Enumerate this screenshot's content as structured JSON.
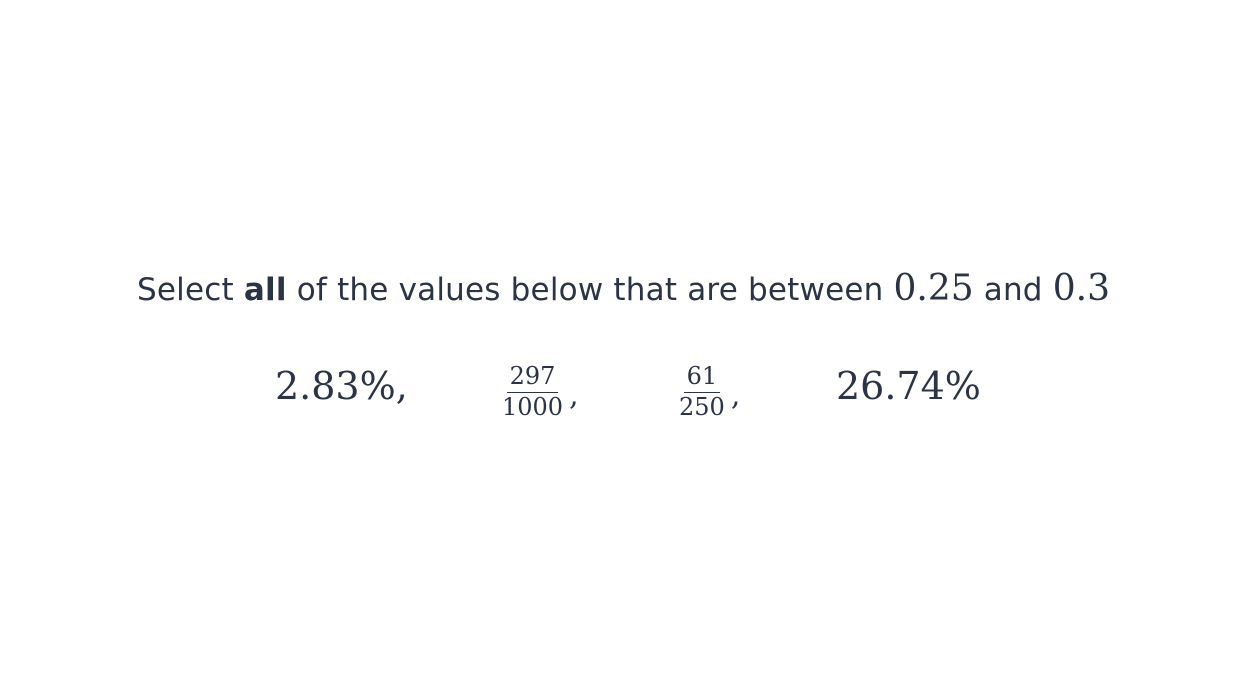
{
  "question": {
    "prefix": "Select ",
    "emphasis": "all",
    "middle": " of the values below that are between ",
    "lower_bound": "0.25",
    "connector": " and ",
    "upper_bound": "0.3"
  },
  "options": [
    {
      "kind": "percent",
      "text": "2.83%,"
    },
    {
      "kind": "fraction",
      "numerator": "297",
      "denominator": "1000",
      "separator": ","
    },
    {
      "kind": "fraction",
      "numerator": "61",
      "denominator": "250",
      "separator": ","
    },
    {
      "kind": "percent",
      "text": "26.74%"
    }
  ]
}
